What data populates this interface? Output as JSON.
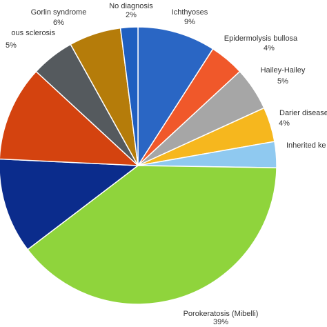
{
  "chart_data": {
    "type": "pie",
    "categories": [
      "Ichthyoses",
      "Epidermolysis bullosa",
      "Hailey-Hailey",
      "Darier disease",
      "Inherited ke",
      "Porokeratosis (Mibelli)",
      null,
      null,
      "ous sclerosis",
      "Gorlin syndrome",
      "No diagnosis"
    ],
    "values": [
      9,
      4,
      5,
      4,
      3,
      39,
      11,
      11,
      5,
      6,
      2
    ],
    "value_labels": [
      "9%",
      "4%",
      "5%",
      "4%",
      null,
      "39%",
      null,
      null,
      "5%",
      "6%",
      "2%"
    ],
    "colors": [
      "#2a66c4",
      "#f0582a",
      "#a6a6a6",
      "#f6b71e",
      "#8fc9f0",
      "#8fd43c",
      "#0b2c8c",
      "#d4430f",
      "#555a5e",
      "#b57c0a",
      "#1f5fc0"
    ]
  }
}
